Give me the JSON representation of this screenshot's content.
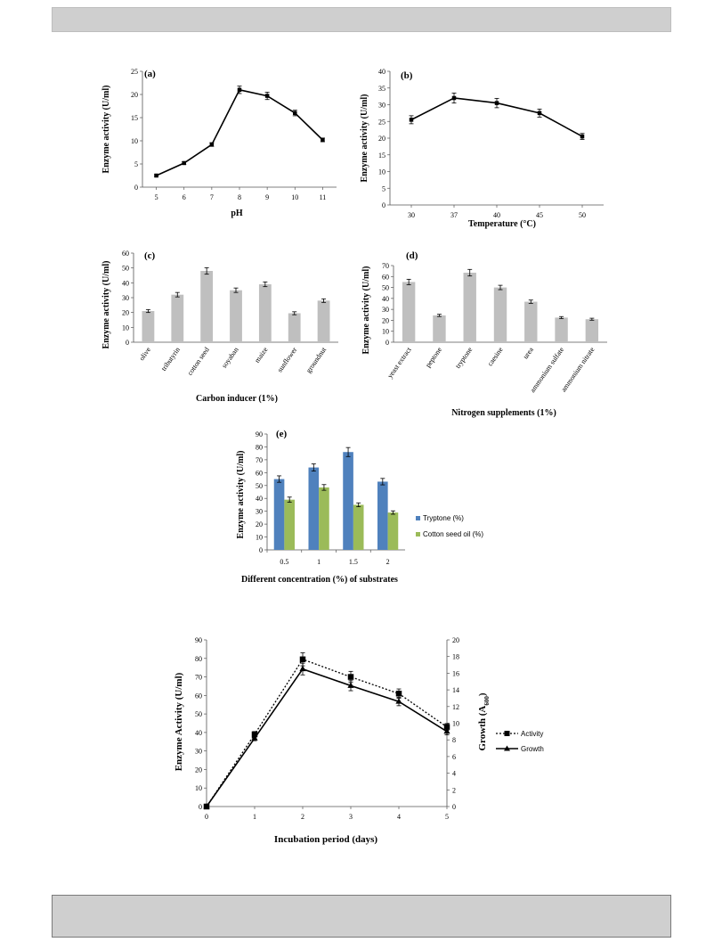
{
  "chart_data": [
    {
      "id": "a",
      "type": "line",
      "panel_label": "(a)",
      "x": [
        5,
        6,
        7,
        8,
        9,
        10,
        11
      ],
      "series": [
        {
          "values": [
            2.5,
            5.2,
            9.2,
            21,
            19.7,
            16,
            10.2
          ],
          "errors": [
            0.2,
            0.3,
            0.4,
            0.8,
            0.8,
            0.6,
            0.4
          ]
        }
      ],
      "xlabel": "pH",
      "ylabel": "Enzyme activity (U/ml)",
      "ylim": [
        0,
        25
      ],
      "yticks": [
        0,
        5,
        10,
        15,
        20,
        25
      ],
      "grid": false
    },
    {
      "id": "b",
      "type": "line",
      "panel_label": "(b)",
      "categories": [
        "30",
        "37",
        "40",
        "45",
        "50"
      ],
      "series": [
        {
          "values": [
            25.5,
            32,
            30.5,
            27.5,
            20.5
          ],
          "errors": [
            1.2,
            1.5,
            1.4,
            1.2,
            0.9
          ]
        }
      ],
      "xlabel": "Temperature (°C)",
      "ylabel": "Enzyme activity (U/ml)",
      "ylim": [
        0,
        40
      ],
      "yticks": [
        0,
        5,
        10,
        15,
        20,
        25,
        30,
        35,
        40
      ],
      "grid": false
    },
    {
      "id": "c",
      "type": "bar",
      "panel_label": "(c)",
      "categories": [
        "olive",
        "tributyrin",
        "cotton seed",
        "soyaban",
        "maize",
        "sunflower",
        "groundnut"
      ],
      "series": [
        {
          "values": [
            21,
            32,
            48,
            35,
            39,
            19.5,
            28
          ],
          "errors": [
            1,
            1.5,
            2.2,
            1.5,
            1.6,
            1,
            1.2
          ]
        }
      ],
      "xlabel": "Carbon inducer (1%)",
      "ylabel": "Enzyme activity (U/ml)",
      "ylim": [
        0,
        60
      ],
      "yticks": [
        0,
        10,
        20,
        30,
        40,
        50,
        60
      ],
      "grid": false
    },
    {
      "id": "d",
      "type": "bar",
      "panel_label": "(d)",
      "categories": [
        "yeast extract",
        "peptone",
        "tryptone",
        "caesine",
        "urea",
        "ammonium sulfate",
        "ammonium nitrate"
      ],
      "series": [
        {
          "values": [
            55,
            24.5,
            63.5,
            50,
            37,
            22.5,
            21
          ],
          "errors": [
            2.5,
            1,
            3,
            2,
            1.5,
            0.9,
            0.9
          ]
        }
      ],
      "xlabel": "Nitrogen supplements (1%)",
      "ylabel": "Enzyme activity (U/ml)",
      "ylim": [
        0,
        70
      ],
      "yticks": [
        0,
        10,
        20,
        30,
        40,
        50,
        60,
        70
      ],
      "grid": false
    },
    {
      "id": "e",
      "type": "bar",
      "panel_label": "(e)",
      "categories": [
        "0.5",
        "1",
        "1.5",
        "2"
      ],
      "series": [
        {
          "name": "Tryptone (%)",
          "color": "#4f81bd",
          "values": [
            55,
            64,
            76,
            53
          ],
          "errors": [
            2.5,
            2.8,
            3.5,
            2.5
          ]
        },
        {
          "name": "Cotton seed oil (%)",
          "color": "#9bbb59",
          "values": [
            39,
            48.5,
            35,
            29
          ],
          "errors": [
            2,
            2.2,
            1.5,
            1.3
          ]
        }
      ],
      "xlabel": "Different concentration (%) of substrates",
      "ylabel": "Enzyme activity (U/ml)",
      "ylim": [
        0,
        90
      ],
      "yticks": [
        0,
        10,
        20,
        30,
        40,
        50,
        60,
        70,
        80,
        90
      ],
      "legend": "right",
      "grid": false
    },
    {
      "id": "f",
      "type": "line",
      "x": [
        0,
        1,
        2,
        3,
        4,
        5
      ],
      "series": [
        {
          "name": "Activity",
          "axis": "left",
          "style": "dotted",
          "marker": "square",
          "values": [
            0,
            39,
            79.5,
            70,
            61,
            43
          ],
          "errors": [
            0,
            1.5,
            3.5,
            3,
            2.5,
            1.8
          ]
        },
        {
          "name": "Growth",
          "axis": "right",
          "style": "solid",
          "marker": "triangle",
          "values": [
            0,
            8.2,
            16.5,
            14.5,
            12.6,
            9
          ],
          "errors": [
            0,
            0.3,
            0.7,
            0.6,
            0.5,
            0.4
          ]
        }
      ],
      "xlabel": "Incubation period (days)",
      "ylabel": "Enzyme Activity (U/ml)",
      "y2label": "Growth (A600)",
      "ylim": [
        0,
        90
      ],
      "yticks": [
        0,
        10,
        20,
        30,
        40,
        50,
        60,
        70,
        80,
        90
      ],
      "y2lim": [
        0,
        20
      ],
      "y2ticks": [
        0,
        2,
        4,
        6,
        8,
        10,
        12,
        14,
        16,
        18,
        20
      ],
      "legend": "right",
      "grid": false
    }
  ]
}
